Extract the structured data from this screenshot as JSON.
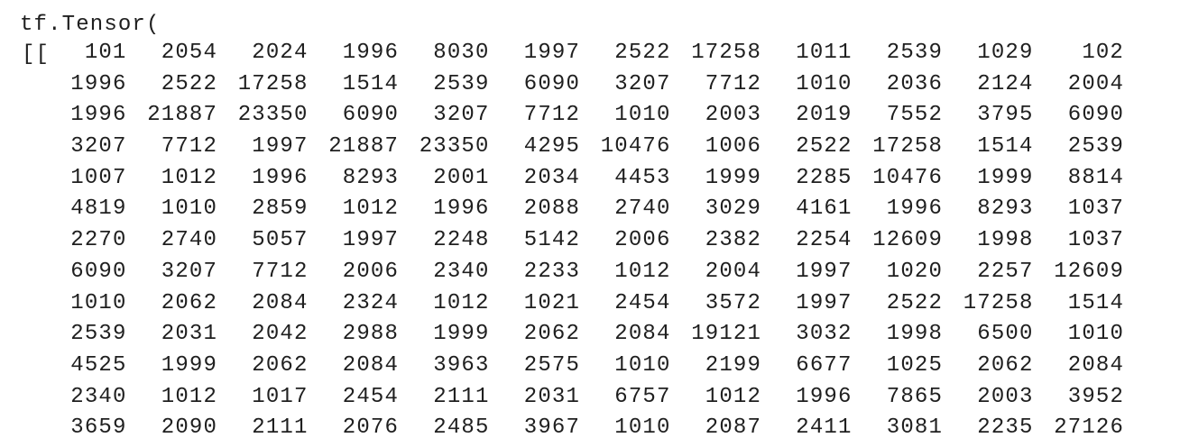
{
  "output": {
    "header": "tf.Tensor(",
    "prefix": "[[",
    "rows": [
      [
        "101",
        "2054",
        "2024",
        "1996",
        "8030",
        "1997",
        "2522",
        "17258",
        "1011",
        "2539",
        "1029",
        "102"
      ],
      [
        "1996",
        "2522",
        "17258",
        "1514",
        "2539",
        "6090",
        "3207",
        "7712",
        "1010",
        "2036",
        "2124",
        "2004"
      ],
      [
        "1996",
        "21887",
        "23350",
        "6090",
        "3207",
        "7712",
        "1010",
        "2003",
        "2019",
        "7552",
        "3795",
        "6090"
      ],
      [
        "3207",
        "7712",
        "1997",
        "21887",
        "23350",
        "4295",
        "10476",
        "1006",
        "2522",
        "17258",
        "1514",
        "2539"
      ],
      [
        "1007",
        "1012",
        "1996",
        "8293",
        "2001",
        "2034",
        "4453",
        "1999",
        "2285",
        "10476",
        "1999",
        "8814"
      ],
      [
        "4819",
        "1010",
        "2859",
        "1012",
        "1996",
        "2088",
        "2740",
        "3029",
        "4161",
        "1996",
        "8293",
        "1037"
      ],
      [
        "2270",
        "2740",
        "5057",
        "1997",
        "2248",
        "5142",
        "2006",
        "2382",
        "2254",
        "12609",
        "1998",
        "1037"
      ],
      [
        "6090",
        "3207",
        "7712",
        "2006",
        "2340",
        "2233",
        "1012",
        "2004",
        "1997",
        "1020",
        "2257",
        "12609"
      ],
      [
        "1010",
        "2062",
        "2084",
        "2324",
        "1012",
        "1021",
        "2454",
        "3572",
        "1997",
        "2522",
        "17258",
        "1514"
      ],
      [
        "2539",
        "2031",
        "2042",
        "2988",
        "1999",
        "2062",
        "2084",
        "19121",
        "3032",
        "1998",
        "6500",
        "1010"
      ],
      [
        "4525",
        "1999",
        "2062",
        "2084",
        "3963",
        "2575",
        "1010",
        "2199",
        "6677",
        "1025",
        "2062",
        "2084"
      ],
      [
        "2340",
        "1012",
        "1017",
        "2454",
        "2111",
        "2031",
        "6757",
        "1012",
        "1996",
        "7865",
        "2003",
        "3952"
      ],
      [
        "3659",
        "2090",
        "2111",
        "2076",
        "2485",
        "3967",
        "1010",
        "2087",
        "2411",
        "3081",
        "2235",
        "27126"
      ]
    ]
  }
}
